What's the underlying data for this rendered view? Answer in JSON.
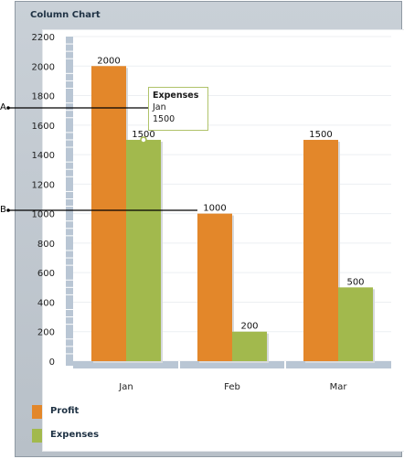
{
  "panel": {
    "title": "Column Chart"
  },
  "callouts": [
    {
      "label": "A"
    },
    {
      "label": "B"
    }
  ],
  "tooltip": {
    "series": "Expenses",
    "category": "Jan",
    "value": "1500"
  },
  "legend": [
    {
      "label": "Profit",
      "color": "#e3872a"
    },
    {
      "label": "Expenses",
      "color": "#a2b94d"
    }
  ],
  "chart_data": {
    "type": "bar",
    "title": "Column Chart",
    "categories": [
      "Jan",
      "Feb",
      "Mar"
    ],
    "series": [
      {
        "name": "Profit",
        "values": [
          2000,
          1000,
          1500
        ],
        "color": "#e3872a"
      },
      {
        "name": "Expenses",
        "values": [
          1500,
          200,
          500
        ],
        "color": "#a2b94d"
      }
    ],
    "ylim": [
      0,
      2200
    ],
    "yticks": [
      0,
      200,
      400,
      600,
      800,
      1000,
      1200,
      1400,
      1600,
      1800,
      2000,
      2200
    ],
    "grid": true,
    "legend_position": "bottom-left"
  }
}
